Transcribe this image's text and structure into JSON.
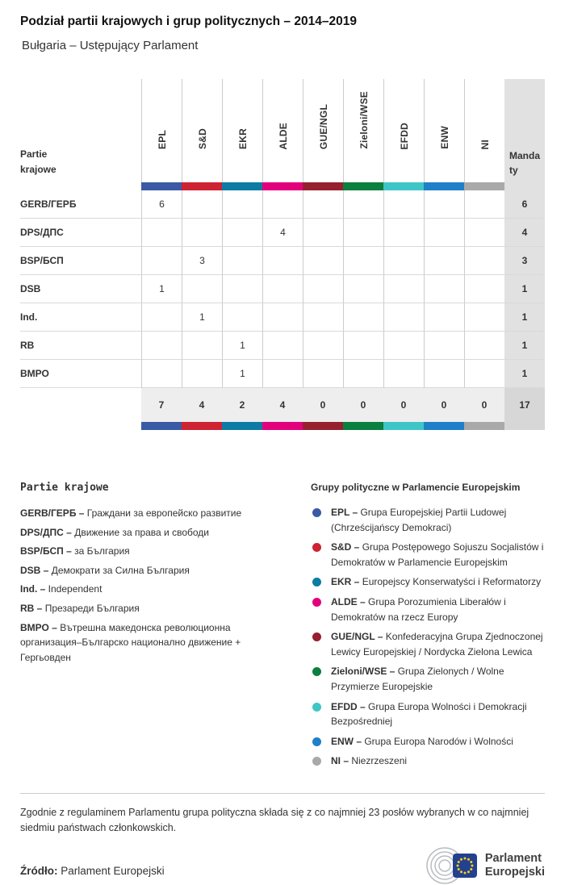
{
  "header": {
    "title": "Podział partii krajowych i grup politycznych – 2014–2019",
    "subtitle": "Bułgaria – Ustępujący Parlament"
  },
  "table": {
    "row_header_label": "Partie\nkrajowe",
    "mandaty_label": "Mandaty",
    "groups": [
      {
        "id": "EPL",
        "label": "EPL",
        "color": "#3b5aa5"
      },
      {
        "id": "S&D",
        "label": "S&D",
        "color": "#cd2333"
      },
      {
        "id": "EKR",
        "label": "EKR",
        "color": "#0e7ba4"
      },
      {
        "id": "ALDE",
        "label": "ALDE",
        "color": "#e3007d"
      },
      {
        "id": "GUE/NGL",
        "label": "GUE/NGL",
        "color": "#96202e"
      },
      {
        "id": "Zieloni/WSE",
        "label": "Zieloni/WSE",
        "color": "#0a7f3e"
      },
      {
        "id": "EFDD",
        "label": "EFDD",
        "color": "#3ec6c6"
      },
      {
        "id": "ENW",
        "label": "ENW",
        "color": "#1f7fc8"
      },
      {
        "id": "NI",
        "label": "NI",
        "color": "#a9a9a9"
      }
    ],
    "rows": [
      {
        "party": "GERB/ГЕРБ",
        "values": [
          "6",
          "",
          "",
          "",
          "",
          "",
          "",
          "",
          ""
        ],
        "total": "6"
      },
      {
        "party": "DPS/ДПС",
        "values": [
          "",
          "",
          "",
          "4",
          "",
          "",
          "",
          "",
          ""
        ],
        "total": "4"
      },
      {
        "party": "BSP/БСП",
        "values": [
          "",
          "3",
          "",
          "",
          "",
          "",
          "",
          "",
          ""
        ],
        "total": "3"
      },
      {
        "party": "DSB",
        "values": [
          "1",
          "",
          "",
          "",
          "",
          "",
          "",
          "",
          ""
        ],
        "total": "1"
      },
      {
        "party": "Ind.",
        "values": [
          "",
          "1",
          "",
          "",
          "",
          "",
          "",
          "",
          ""
        ],
        "total": "1"
      },
      {
        "party": "RB",
        "values": [
          "",
          "",
          "1",
          "",
          "",
          "",
          "",
          "",
          ""
        ],
        "total": "1"
      },
      {
        "party": "ВМРО",
        "values": [
          "",
          "",
          "1",
          "",
          "",
          "",
          "",
          "",
          ""
        ],
        "total": "1"
      }
    ],
    "totals": {
      "values": [
        "7",
        "4",
        "2",
        "4",
        "0",
        "0",
        "0",
        "0",
        "0"
      ],
      "grand": "17"
    }
  },
  "legend_parties": {
    "title": "Partie krajowe",
    "items": [
      {
        "abbr": "GERB/ГЕРБ",
        "text": "Граждани за европейско развитие"
      },
      {
        "abbr": "DPS/ДПС",
        "text": "Движение за права и свободи"
      },
      {
        "abbr": "BSP/БСП",
        "text": "за България"
      },
      {
        "abbr": "DSB",
        "text": "Демократи за Силна България"
      },
      {
        "abbr": "Ind.",
        "text": "Independent"
      },
      {
        "abbr": "RB",
        "text": "Презареди България"
      },
      {
        "abbr": "ВМРО",
        "text": "Вътрешна македонска революционна организация–Българско национално движение + Гергьовден"
      }
    ]
  },
  "legend_groups": {
    "title": "Grupy polityczne w Parlamencie Europejskim",
    "items": [
      {
        "group": "EPL",
        "text": "Grupa Europejskiej Partii Ludowej (Chrześcijańscy Demokraci)"
      },
      {
        "group": "S&D",
        "text": "Grupa Postępowego Sojuszu Socjalistów i Demokratów w Parlamencie Europejskim"
      },
      {
        "group": "EKR",
        "text": "Europejscy Konserwatyści i Reformatorzy"
      },
      {
        "group": "ALDE",
        "text": "Grupa Porozumienia Liberałów i Demokratów na rzecz Europy"
      },
      {
        "group": "GUE/NGL",
        "text": "Konfederacyjna Grupa Zjednoczonej Lewicy Europejskiej / Nordycka Zielona Lewica"
      },
      {
        "group": "Zieloni/WSE",
        "text": "Grupa Zielonych / Wolne Przymierze Europejskie"
      },
      {
        "group": "EFDD",
        "text": "Grupa Europa Wolności i Demokracji Bezpośredniej"
      },
      {
        "group": "ENW",
        "text": "Grupa Europa Narodów i Wolności"
      },
      {
        "group": "NI",
        "text": "Niezrzeszeni"
      }
    ]
  },
  "footer": {
    "note": "Zgodnie z regulaminem Parlamentu grupa polityczna składa się z co najmniej 23 posłów wybranych w co najmniej siedmiu państwach członkowskich.",
    "source_label": "Źródło:",
    "source_value": "Parlament Europejski",
    "logo_line1": "Parlament",
    "logo_line2": "Europejski"
  },
  "chart_data": {
    "type": "table",
    "title": "Podział partii krajowych i grup politycznych – 2014–2019",
    "subtitle": "Bułgaria – Ustępujący Parlament",
    "group_columns": [
      "EPL",
      "S&D",
      "EKR",
      "ALDE",
      "GUE/NGL",
      "Zieloni/WSE",
      "EFDD",
      "ENW",
      "NI"
    ],
    "parties": [
      "GERB/ГЕРБ",
      "DPS/ДПС",
      "BSP/БСП",
      "DSB",
      "Ind.",
      "RB",
      "ВМРО"
    ],
    "matrix": [
      [
        6,
        0,
        0,
        0,
        0,
        0,
        0,
        0,
        0
      ],
      [
        0,
        0,
        0,
        4,
        0,
        0,
        0,
        0,
        0
      ],
      [
        0,
        3,
        0,
        0,
        0,
        0,
        0,
        0,
        0
      ],
      [
        1,
        0,
        0,
        0,
        0,
        0,
        0,
        0,
        0
      ],
      [
        0,
        1,
        0,
        0,
        0,
        0,
        0,
        0,
        0
      ],
      [
        0,
        0,
        1,
        0,
        0,
        0,
        0,
        0,
        0
      ],
      [
        0,
        0,
        1,
        0,
        0,
        0,
        0,
        0,
        0
      ]
    ],
    "party_totals": [
      6,
      4,
      3,
      1,
      1,
      1,
      1
    ],
    "group_totals": [
      7,
      4,
      2,
      4,
      0,
      0,
      0,
      0,
      0
    ],
    "total_seats": 17
  }
}
